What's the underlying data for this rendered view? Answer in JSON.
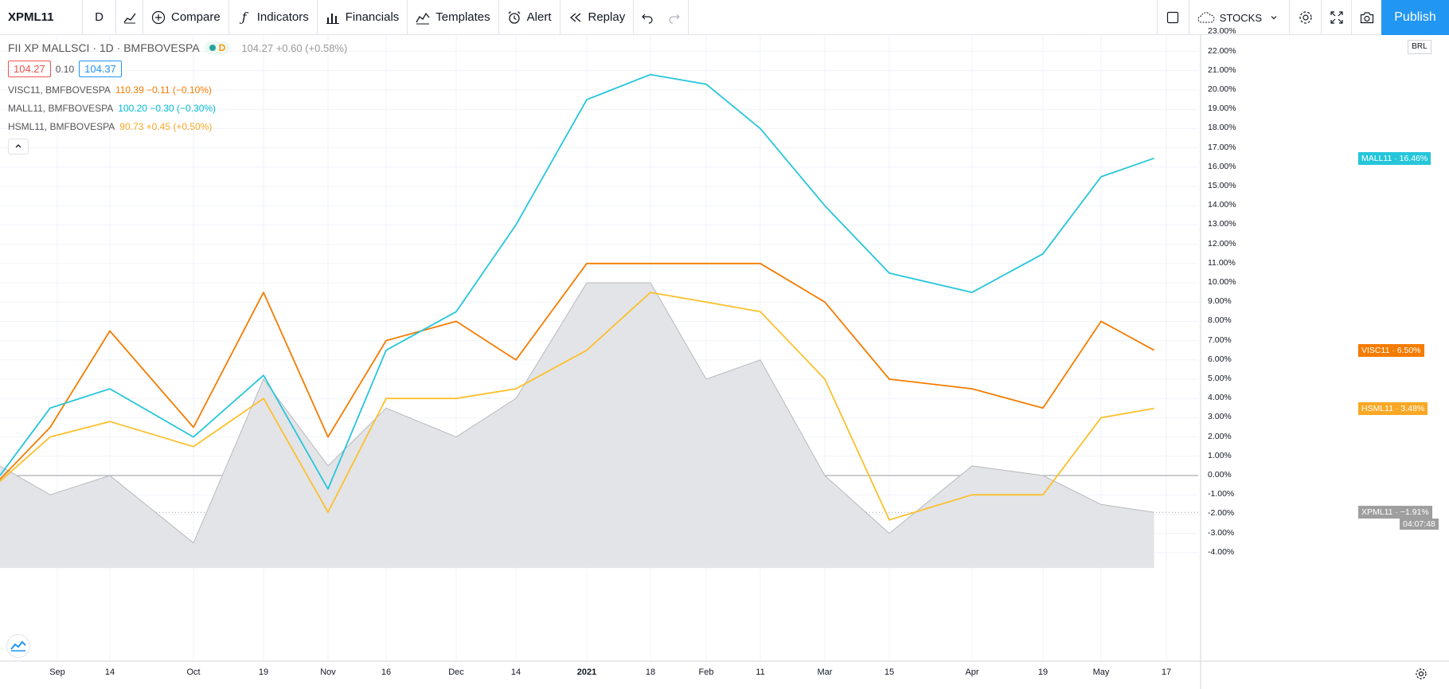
{
  "toolbar": {
    "symbol": "XPML11",
    "interval": "D",
    "compare": "Compare",
    "indicators": "Indicators",
    "financials": "Financials",
    "templates": "Templates",
    "alert": "Alert",
    "replay": "Replay",
    "layout": "STOCKS",
    "publish": "Publish"
  },
  "legend": {
    "main_title": "FII XP MALLSCI · 1D · BMFBOVESPA",
    "main_badge": "D",
    "main_values": "104.27 +0.60 (+0.58%)",
    "bid": "104.27",
    "spread": "0.10",
    "ask": "104.37",
    "series": [
      {
        "name": "VISC11, BMFBOVESPA",
        "values": "110.39 −0.11 (−0.10%)",
        "color": "#f57c00"
      },
      {
        "name": "MALL11, BMFBOVESPA",
        "values": "100.20 −0.30 (−0.30%)",
        "color": "#00bcd4"
      },
      {
        "name": "HSML11, BMFBOVESPA",
        "values": "90.73 +0.45 (+0.50%)",
        "color": "#f9a825"
      }
    ],
    "collapse": "^"
  },
  "axis": {
    "currency": "BRL",
    "y_ticks": [
      "23.00%",
      "22.00%",
      "21.00%",
      "20.00%",
      "19.00%",
      "18.00%",
      "17.00%",
      "16.00%",
      "15.00%",
      "14.00%",
      "13.00%",
      "12.00%",
      "11.00%",
      "10.00%",
      "9.00%",
      "8.00%",
      "7.00%",
      "6.00%",
      "5.00%",
      "4.00%",
      "3.00%",
      "2.00%",
      "1.00%",
      "0.00%",
      "-1.00%",
      "-2.00%",
      "-3.00%",
      "-4.00%"
    ],
    "x_ticks": [
      "Sep",
      "14",
      "Oct",
      "19",
      "Nov",
      "16",
      "Dec",
      "14",
      "2021",
      "18",
      "Feb",
      "11",
      "Mar",
      "15",
      "Apr",
      "19",
      "May",
      "17"
    ]
  },
  "price_labels": {
    "mall": "MALL11 · 16.46%",
    "visc": "VISC11 · 6.50%",
    "hsml": "HSML11 · 3.48%",
    "xpml": "XPML11 · −1.91%",
    "countdown": "04:07:48"
  },
  "colors": {
    "visc": "#f57c00",
    "mall": "#26c6da",
    "hsml": "#fbc02d",
    "xpml_fill": "#e3e4e8",
    "xpml_line": "#b8b9be"
  },
  "chart_data": {
    "type": "line",
    "ylabel": "",
    "y_unit": "%",
    "ylim": [
      -4.8,
      23
    ],
    "x_dates": [
      "2020-08-24",
      "2020-08-31",
      "2020-09-14",
      "2020-10-01",
      "2020-10-19",
      "2020-11-01",
      "2020-11-16",
      "2020-12-01",
      "2020-12-14",
      "2021-01-01",
      "2021-01-18",
      "2021-02-01",
      "2021-02-11",
      "2021-03-01",
      "2021-03-15",
      "2021-04-01",
      "2021-04-19",
      "2021-05-01",
      "2021-05-14"
    ],
    "series": [
      {
        "name": "MALL11",
        "values": [
          0.0,
          3.5,
          4.5,
          2.0,
          5.2,
          -0.7,
          6.5,
          8.5,
          13.0,
          19.5,
          20.8,
          20.3,
          18.0,
          14.0,
          10.5,
          9.5,
          11.5,
          15.5,
          16.46
        ]
      },
      {
        "name": "VISC11",
        "values": [
          -0.2,
          2.5,
          7.5,
          2.5,
          9.5,
          2.0,
          7.0,
          8.0,
          6.0,
          11.0,
          11.0,
          11.0,
          11.0,
          9.0,
          5.0,
          4.5,
          3.5,
          8.0,
          6.5
        ]
      },
      {
        "name": "HSML11",
        "values": [
          -0.3,
          2.0,
          2.8,
          1.5,
          4.0,
          -1.9,
          4.0,
          4.0,
          4.5,
          6.5,
          9.5,
          9.0,
          8.5,
          5.0,
          -2.3,
          -1.0,
          -1.0,
          3.0,
          3.48
        ]
      },
      {
        "name": "XPML11",
        "values": [
          0.5,
          -1.0,
          0.0,
          -3.5,
          5.0,
          0.5,
          3.5,
          2.0,
          4.0,
          10.0,
          10.0,
          5.0,
          6.0,
          0.0,
          -3.0,
          0.5,
          0.0,
          -1.5,
          -1.91
        ]
      }
    ]
  }
}
